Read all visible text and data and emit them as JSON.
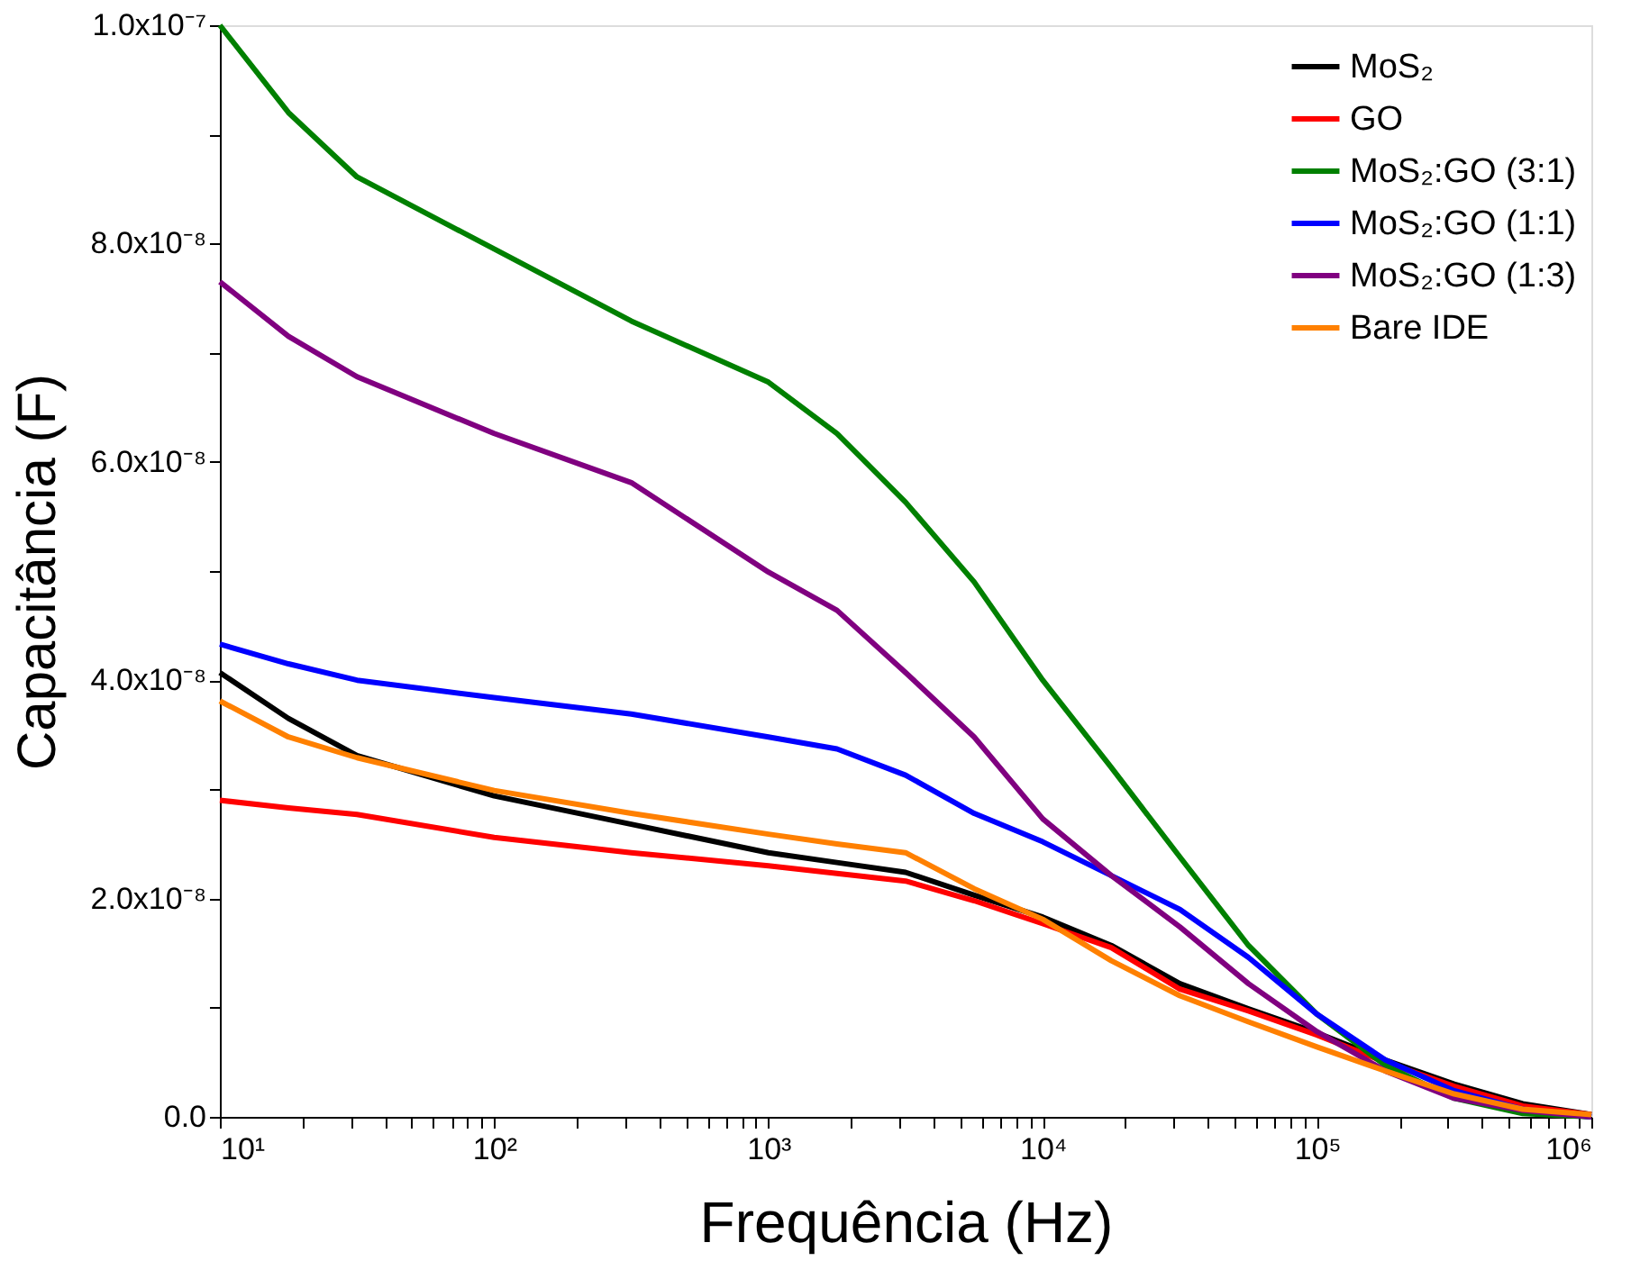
{
  "chart_data": {
    "type": "line",
    "xlabel": "Frequência (Hz)",
    "ylabel": "Capacitância (F)",
    "log": "x",
    "grid": false,
    "legend": "top right",
    "marker": "none",
    "line_style": "solid",
    "xlim": [
      10,
      1000000
    ],
    "ylim": [
      0,
      1e-07
    ],
    "xticks": [
      {
        "value": 10,
        "label": "10¹"
      },
      {
        "value": 20,
        "label": null
      },
      {
        "value": 30,
        "label": null
      },
      {
        "value": 40,
        "label": null
      },
      {
        "value": 50,
        "label": null
      },
      {
        "value": 60,
        "label": null
      },
      {
        "value": 70,
        "label": null
      },
      {
        "value": 80,
        "label": null
      },
      {
        "value": 90,
        "label": null
      },
      {
        "value": 100,
        "label": "10²"
      },
      {
        "value": 200,
        "label": null
      },
      {
        "value": 300,
        "label": null
      },
      {
        "value": 400,
        "label": null
      },
      {
        "value": 500,
        "label": null
      },
      {
        "value": 600,
        "label": null
      },
      {
        "value": 700,
        "label": null
      },
      {
        "value": 800,
        "label": null
      },
      {
        "value": 900,
        "label": null
      },
      {
        "value": 1000,
        "label": "10³"
      },
      {
        "value": 2000,
        "label": null
      },
      {
        "value": 3000,
        "label": null
      },
      {
        "value": 4000,
        "label": null
      },
      {
        "value": 5000,
        "label": null
      },
      {
        "value": 6000,
        "label": null
      },
      {
        "value": 7000,
        "label": null
      },
      {
        "value": 8000,
        "label": null
      },
      {
        "value": 9000,
        "label": null
      },
      {
        "value": 10000,
        "label": "10⁴"
      },
      {
        "value": 20000,
        "label": null
      },
      {
        "value": 30000,
        "label": null
      },
      {
        "value": 40000,
        "label": null
      },
      {
        "value": 50000,
        "label": null
      },
      {
        "value": 60000,
        "label": null
      },
      {
        "value": 70000,
        "label": null
      },
      {
        "value": 80000,
        "label": null
      },
      {
        "value": 90000,
        "label": null
      },
      {
        "value": 100000,
        "label": "10⁵"
      },
      {
        "value": 200000,
        "label": null
      },
      {
        "value": 300000,
        "label": null
      },
      {
        "value": 400000,
        "label": null
      },
      {
        "value": 500000,
        "label": null
      },
      {
        "value": 600000,
        "label": null
      },
      {
        "value": 700000,
        "label": null
      },
      {
        "value": 800000,
        "label": null
      },
      {
        "value": 900000,
        "label": null
      },
      {
        "value": 1000000,
        "label": "10⁶"
      }
    ],
    "yticks": [
      {
        "value": 0,
        "label": "0.0"
      },
      {
        "value": 1e-08,
        "label": null
      },
      {
        "value": 2e-08,
        "label": "2.0x10⁻⁸"
      },
      {
        "value": 3e-08,
        "label": null
      },
      {
        "value": 4e-08,
        "label": "4.0x10⁻⁸"
      },
      {
        "value": 5e-08,
        "label": null
      },
      {
        "value": 6e-08,
        "label": "6.0x10⁻⁸"
      },
      {
        "value": 7e-08,
        "label": null
      },
      {
        "value": 8e-08,
        "label": "8.0x10⁻⁸"
      },
      {
        "value": 9e-08,
        "label": null
      },
      {
        "value": 1e-07,
        "label": "1.0x10⁻⁷"
      }
    ],
    "x": [
      10,
      17.78,
      31.62,
      100,
      316.2,
      1000,
      1778,
      3162,
      5623,
      10000,
      17783,
      31623,
      56234,
      100000,
      177828,
      316228,
      562341,
      1000000
    ],
    "series": [
      {
        "name": "MoS₂",
        "color": "#000000",
        "values": [
          4.07e-08,
          3.65e-08,
          3.31e-08,
          2.94e-08,
          2.68e-08,
          2.42e-08,
          2.33e-08,
          2.24e-08,
          2.03e-08,
          1.83e-08,
          1.57e-08,
          1.22e-08,
          9.9e-09,
          7.7e-09,
          5.2e-09,
          3e-09,
          1.2e-09,
          2e-10
        ]
      },
      {
        "name": "GO",
        "color": "#ff0000",
        "values": [
          2.9e-08,
          2.83e-08,
          2.77e-08,
          2.56e-08,
          2.42e-08,
          2.3e-08,
          2.23e-08,
          2.16e-08,
          1.98e-08,
          1.77e-08,
          1.55e-08,
          1.17e-08,
          9.7e-09,
          7.5e-09,
          5e-09,
          2.8e-09,
          1e-09,
          2e-10
        ]
      },
      {
        "name": "MoS₂:GO (3:1)",
        "color": "#008000",
        "values": [
          1e-07,
          9.2e-08,
          8.61e-08,
          7.95e-08,
          7.29e-08,
          6.73e-08,
          6.26e-08,
          5.63e-08,
          4.9e-08,
          4e-08,
          3.2e-08,
          2.38e-08,
          1.57e-08,
          9.4e-09,
          4.7e-09,
          1.7e-09,
          3e-10,
          0.0
        ]
      },
      {
        "name": "MoS₂:GO (1:1)",
        "color": "#0000ff",
        "values": [
          4.33e-08,
          4.15e-08,
          4e-08,
          3.84e-08,
          3.69e-08,
          3.48e-08,
          3.37e-08,
          3.13e-08,
          2.78e-08,
          2.52e-08,
          2.21e-08,
          1.9e-08,
          1.46e-08,
          9.4e-09,
          5.2e-09,
          2.4e-09,
          7e-10,
          0.0
        ]
      },
      {
        "name": "MoS₂:GO (1:3)",
        "color": "#800080",
        "values": [
          7.65e-08,
          7.15e-08,
          6.78e-08,
          6.26e-08,
          5.81e-08,
          4.99e-08,
          4.64e-08,
          4.07e-08,
          3.48e-08,
          2.73e-08,
          2.21e-08,
          1.74e-08,
          1.22e-08,
          7.8e-09,
          4.2e-09,
          1.7e-09,
          6e-10,
          0.0
        ]
      },
      {
        "name": "Bare IDE",
        "color": "#ff8000",
        "values": [
          3.81e-08,
          3.48e-08,
          3.29e-08,
          2.99e-08,
          2.78e-08,
          2.59e-08,
          2.5e-08,
          2.42e-08,
          2.09e-08,
          1.81e-08,
          1.43e-08,
          1.11e-08,
          8.7e-09,
          6.4e-09,
          4.2e-09,
          2.1e-09,
          7e-10,
          2e-10
        ]
      }
    ]
  }
}
